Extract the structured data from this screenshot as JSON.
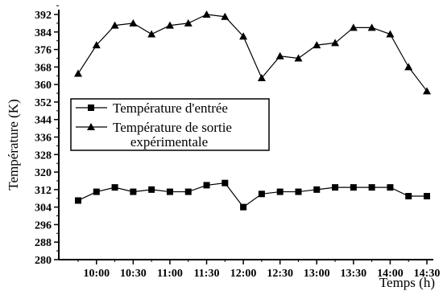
{
  "chart_data": {
    "type": "line",
    "xlabel": "Temps (h)",
    "ylabel": "Température (K)",
    "x_tick_labels": [
      "10:00",
      "10:30",
      "11:00",
      "11:30",
      "12:00",
      "12:30",
      "13:00",
      "13:30",
      "14:00",
      "14:30"
    ],
    "y_tick_labels": [
      "280",
      "288",
      "296",
      "304",
      "312",
      "320",
      "328",
      "336",
      "344",
      "352",
      "360",
      "368",
      "376",
      "384",
      "392"
    ],
    "ylim": [
      280,
      392
    ],
    "x": [
      "09:45",
      "10:00",
      "10:15",
      "10:30",
      "10:45",
      "11:00",
      "11:15",
      "11:30",
      "11:45",
      "12:00",
      "12:15",
      "12:30",
      "12:45",
      "13:00",
      "13:15",
      "13:30",
      "13:45",
      "14:00",
      "14:15",
      "14:30"
    ],
    "series": [
      {
        "name": "Température d'entrée",
        "marker": "square",
        "values": [
          307,
          311,
          313,
          311,
          312,
          311,
          311,
          314,
          315,
          304,
          310,
          311,
          311,
          312,
          313,
          313,
          313,
          313,
          309,
          309
        ]
      },
      {
        "name": "Température de sortie expérimentale",
        "marker": "triangle",
        "values": [
          365,
          378,
          387,
          388,
          383,
          387,
          388,
          392,
          391,
          382,
          363,
          373,
          372,
          378,
          379,
          386,
          386,
          383,
          368,
          357
        ]
      }
    ],
    "legend": {
      "placement": "center-left",
      "lines": [
        [
          "Température d'entrée"
        ],
        [
          "Température de sortie",
          "expérimentale"
        ]
      ]
    },
    "grid": false
  }
}
